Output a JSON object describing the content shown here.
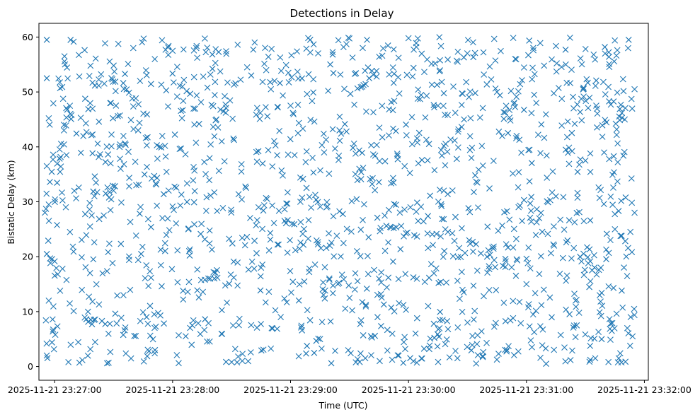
{
  "chart_data": {
    "type": "scatter",
    "title": "Detections in Delay",
    "xlabel": "Time (UTC)",
    "ylabel": "Bistatic Delay (km)",
    "x_ticks": [
      "2025-11-21 23:27:00",
      "2025-11-21 23:28:00",
      "2025-11-21 23:29:00",
      "2025-11-21 23:30:00",
      "2025-11-21 23:31:00",
      "2025-11-21 23:32:00"
    ],
    "y_ticks": [
      "0",
      "10",
      "20",
      "30",
      "40",
      "50",
      "60"
    ],
    "xlim": [
      "2025-11-21 23:26:52",
      "2025-11-21 23:32:02"
    ],
    "ylim": [
      -2.5,
      62.5
    ],
    "x_range_data": [
      "2025-11-21 23:26:55",
      "2025-11-21 23:31:55"
    ],
    "y_range_data": [
      0.5,
      60
    ],
    "marker": "x",
    "marker_color": "#1f77b4",
    "grid": false,
    "approx_point_count": 1500,
    "note_points": "Dense, roughly uniform cloud of detections; individual points not readable — sampled representative set below.",
    "series": [
      {
        "values": [
          [
            "2025-11-21 23:26:56",
            59.5
          ],
          [
            "2025-11-21 23:26:56",
            52.5
          ],
          [
            "2025-11-21 23:26:57",
            45.2
          ],
          [
            "2025-11-21 23:26:56",
            36.5
          ],
          [
            "2025-11-21 23:26:57",
            29.5
          ],
          [
            "2025-11-21 23:26:56",
            20.5
          ],
          [
            "2025-11-21 23:26:57",
            12.0
          ],
          [
            "2025-11-21 23:26:56",
            2.0
          ],
          [
            "2025-11-21 23:27:05",
            56.5
          ],
          [
            "2025-11-21 23:27:08",
            46.0
          ],
          [
            "2025-11-21 23:27:06",
            38.5
          ],
          [
            "2025-11-21 23:27:10",
            32.0
          ],
          [
            "2025-11-21 23:27:04",
            17.8
          ],
          [
            "2025-11-21 23:27:07",
            0.8
          ],
          [
            "2025-11-21 23:27:18",
            25.5
          ],
          [
            "2025-11-21 23:27:20",
            8.5
          ],
          [
            "2025-11-21 23:27:25",
            27.5
          ],
          [
            "2025-11-21 23:27:30",
            54.8
          ],
          [
            "2025-11-21 23:27:33",
            40.0
          ],
          [
            "2025-11-21 23:27:35",
            13.0
          ],
          [
            "2025-11-21 23:27:40",
            58.0
          ],
          [
            "2025-11-21 23:27:44",
            20.5
          ],
          [
            "2025-11-21 23:27:48",
            2.8
          ],
          [
            "2025-11-21 23:27:52",
            40.3
          ],
          [
            "2025-11-21 23:28:00",
            57.5
          ],
          [
            "2025-11-21 23:28:05",
            51.0
          ],
          [
            "2025-11-21 23:28:08",
            25.0
          ],
          [
            "2025-11-21 23:28:10",
            7.5
          ],
          [
            "2025-11-21 23:28:20",
            21.3
          ],
          [
            "2025-11-21 23:28:25",
            41.0
          ],
          [
            "2025-11-21 23:28:30",
            0.8
          ],
          [
            "2025-11-21 23:28:35",
            35.5
          ],
          [
            "2025-11-21 23:28:40",
            53.0
          ],
          [
            "2025-11-21 23:28:45",
            18.0
          ],
          [
            "2025-11-21 23:28:50",
            50.5
          ],
          [
            "2025-11-21 23:28:55",
            9.0
          ],
          [
            "2025-11-21 23:29:00",
            47.5
          ],
          [
            "2025-11-21 23:29:05",
            30.0
          ],
          [
            "2025-11-21 23:29:10",
            59.5
          ],
          [
            "2025-11-21 23:29:15",
            5.0
          ],
          [
            "2025-11-21 23:29:20",
            22.0
          ],
          [
            "2025-11-21 23:29:25",
            45.5
          ],
          [
            "2025-11-21 23:29:30",
            12.5
          ],
          [
            "2025-11-21 23:29:35",
            36.0
          ],
          [
            "2025-11-21 23:29:40",
            52.5
          ],
          [
            "2025-11-21 23:29:45",
            16.0
          ],
          [
            "2025-11-21 23:29:50",
            28.5
          ],
          [
            "2025-11-21 23:29:55",
            2.0
          ],
          [
            "2025-11-21 23:30:00",
            59.8
          ],
          [
            "2025-11-21 23:30:05",
            37.0
          ],
          [
            "2025-11-21 23:30:10",
            11.0
          ],
          [
            "2025-11-21 23:30:15",
            47.5
          ],
          [
            "2025-11-21 23:30:20",
            24.5
          ],
          [
            "2025-11-21 23:30:25",
            55.5
          ],
          [
            "2025-11-21 23:30:30",
            8.0
          ],
          [
            "2025-11-21 23:30:35",
            33.5
          ],
          [
            "2025-11-21 23:30:40",
            20.0
          ],
          [
            "2025-11-21 23:30:45",
            50.0
          ],
          [
            "2025-11-21 23:30:50",
            3.0
          ],
          [
            "2025-11-21 23:30:55",
            42.0
          ],
          [
            "2025-11-21 23:31:00",
            15.0
          ],
          [
            "2025-11-21 23:31:05",
            48.0
          ],
          [
            "2025-11-21 23:31:10",
            0.5
          ],
          [
            "2025-11-21 23:31:15",
            31.0
          ],
          [
            "2025-11-21 23:31:20",
            55.0
          ],
          [
            "2025-11-21 23:31:25",
            12.0
          ],
          [
            "2025-11-21 23:31:30",
            37.5
          ],
          [
            "2025-11-21 23:31:35",
            1.5
          ],
          [
            "2025-11-21 23:31:40",
            57.0
          ],
          [
            "2025-11-21 23:31:45",
            25.0
          ],
          [
            "2025-11-21 23:31:50",
            45.0
          ],
          [
            "2025-11-21 23:31:53",
            9.0
          ],
          [
            "2025-11-21 23:31:55",
            50.5
          ],
          [
            "2025-11-21 23:31:55",
            28.0
          ],
          [
            "2025-11-21 23:31:54",
            5.5
          ],
          [
            "2025-11-21 23:31:52",
            59.5
          ]
        ]
      }
    ]
  }
}
